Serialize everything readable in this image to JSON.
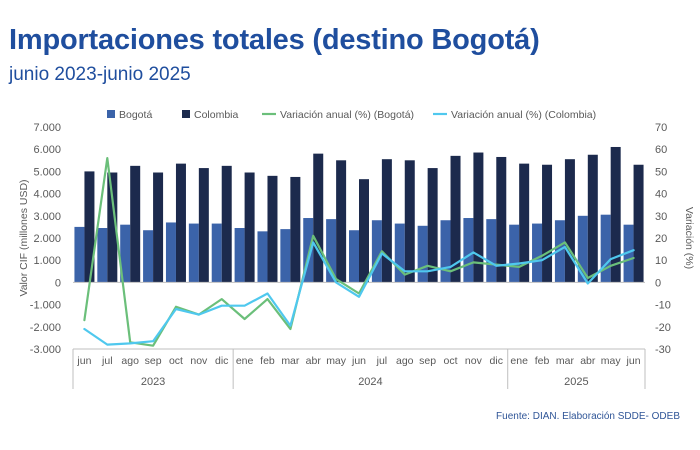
{
  "header": {
    "title": "Importaciones totales (destino Bogotá)",
    "subtitle": "junio 2023-junio 2025"
  },
  "source_note": "Fuente: DIAN. Elaboración SDDE- ODEB",
  "colors": {
    "bogota_bar": "#3b63a9",
    "colombia_bar": "#1c2a4d",
    "bogota_line": "#6bbf7a",
    "colombia_line": "#4fc8ee",
    "title": "#1f4e9e",
    "axis_text": "#595959"
  },
  "chart_data": {
    "type": "bar",
    "categories": [
      "jun",
      "jul",
      "ago",
      "sep",
      "oct",
      "nov",
      "dic",
      "ene",
      "feb",
      "mar",
      "abr",
      "may",
      "jun",
      "jul",
      "ago",
      "sep",
      "oct",
      "nov",
      "dic",
      "ene",
      "feb",
      "mar",
      "abr",
      "may",
      "jun"
    ],
    "year_groups": [
      {
        "label": "2023",
        "count": 7
      },
      {
        "label": "2024",
        "count": 12
      },
      {
        "label": "2025",
        "count": 6
      }
    ],
    "series": [
      {
        "name": "Bogotá",
        "type": "bar",
        "axis": "left",
        "values": [
          2500,
          2450,
          2600,
          2350,
          2700,
          2650,
          2650,
          2450,
          2300,
          2400,
          2900,
          2850,
          2350,
          2800,
          2650,
          2550,
          2800,
          2900,
          2850,
          2600,
          2650,
          2800,
          3000,
          3050,
          2600
        ]
      },
      {
        "name": "Colombia",
        "type": "bar",
        "axis": "left",
        "values": [
          5000,
          4950,
          5250,
          4950,
          5350,
          5150,
          5250,
          4950,
          4800,
          4750,
          5800,
          5500,
          4650,
          5550,
          5500,
          5150,
          5700,
          5850,
          5650,
          5350,
          5300,
          5550,
          5750,
          6100,
          5300
        ]
      },
      {
        "name": "Variación anual (%) (Bogotá)",
        "type": "line",
        "axis": "right",
        "values": [
          -17,
          56,
          -27,
          -28.5,
          -11,
          -14.5,
          -7.5,
          -16.5,
          -7.5,
          -21,
          21,
          1.5,
          -5,
          14,
          3.5,
          7.5,
          5,
          9,
          8,
          7,
          12,
          18,
          2,
          7.5,
          11
        ]
      },
      {
        "name": "Variación anual (%) (Colombia)",
        "type": "line",
        "axis": "right",
        "values": [
          -21,
          -28,
          -27.5,
          -26.5,
          -12,
          -14.5,
          -10.5,
          -10.5,
          -5,
          -19.5,
          18,
          0,
          -6.5,
          13,
          5,
          5,
          7,
          13.5,
          7.5,
          8.5,
          10,
          16,
          -0.5,
          10.5,
          14.5
        ]
      }
    ],
    "y_left": {
      "label": "Valor CIF (millones USD)",
      "min": -3000,
      "max": 7000,
      "step": 1000,
      "tick_labels": [
        "-3.000",
        "-2.000",
        "-1.000",
        "0",
        "1.000",
        "2.000",
        "3.000",
        "4.000",
        "5.000",
        "6.000",
        "7.000"
      ]
    },
    "y_right": {
      "label": "Variación (%)",
      "min": -30,
      "max": 70,
      "step": 10,
      "tick_labels": [
        "-30",
        "-20",
        "-10",
        "0",
        "10",
        "20",
        "30",
        "40",
        "50",
        "60",
        "70"
      ]
    },
    "grid": false,
    "legend_position": "top"
  }
}
